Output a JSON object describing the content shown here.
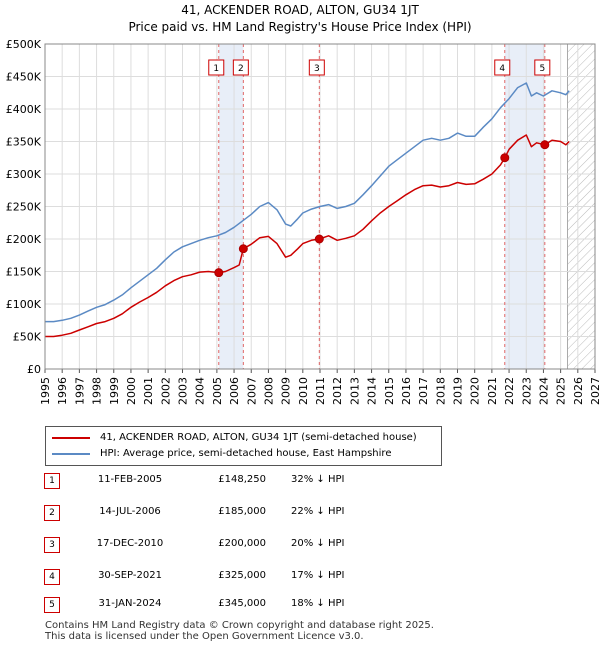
{
  "chart_data": {
    "type": "line",
    "title": "41, ACKENDER ROAD, ALTON, GU34 1JT",
    "subtitle": "Price paid vs. HM Land Registry's House Price Index (HPI)",
    "xlabel": "",
    "ylabel": "",
    "xlim": [
      1995,
      2027
    ],
    "ylim": [
      0,
      500000
    ],
    "x_ticks": [
      1995,
      1996,
      1997,
      1998,
      1999,
      2000,
      2001,
      2002,
      2003,
      2004,
      2005,
      2006,
      2007,
      2008,
      2009,
      2010,
      2011,
      2012,
      2013,
      2014,
      2015,
      2016,
      2017,
      2018,
      2019,
      2020,
      2021,
      2022,
      2023,
      2024,
      2025,
      2026,
      2027
    ],
    "y_ticks": [
      {
        "value": 0,
        "label": "£0"
      },
      {
        "value": 50000,
        "label": "£50K"
      },
      {
        "value": 100000,
        "label": "£100K"
      },
      {
        "value": 150000,
        "label": "£150K"
      },
      {
        "value": 200000,
        "label": "£200K"
      },
      {
        "value": 250000,
        "label": "£250K"
      },
      {
        "value": 300000,
        "label": "£300K"
      },
      {
        "value": 350000,
        "label": "£350K"
      },
      {
        "value": 400000,
        "label": "£400K"
      },
      {
        "value": 450000,
        "label": "£450K"
      },
      {
        "value": 500000,
        "label": "£500K"
      }
    ],
    "grid": true,
    "forecast_from": 2025.4,
    "series": [
      {
        "name": "41, ACKENDER ROAD, ALTON, GU34 1JT (semi-detached house)",
        "color": "#cc0000",
        "x": [
          1995,
          1995.5,
          1996,
          1996.5,
          1997,
          1997.5,
          1998,
          1998.5,
          1999,
          1999.5,
          2000,
          2000.5,
          2001,
          2001.5,
          2002,
          2002.5,
          2003,
          2003.5,
          2004,
          2004.5,
          2005.11,
          2005.5,
          2006,
          2006.3,
          2006.54,
          2007,
          2007.5,
          2008,
          2008.5,
          2009,
          2009.3,
          2009.7,
          2010,
          2010.5,
          2010.96,
          2011.5,
          2012,
          2012.5,
          2013,
          2013.5,
          2014,
          2014.5,
          2015,
          2015.5,
          2016,
          2016.5,
          2017,
          2017.5,
          2018,
          2018.5,
          2019,
          2019.5,
          2020,
          2020.5,
          2021,
          2021.5,
          2021.75,
          2022,
          2022.5,
          2023,
          2023.3,
          2023.6,
          2024.08,
          2024.5,
          2025,
          2025.3,
          2025.5
        ],
        "y": [
          50000,
          50000,
          52000,
          55000,
          60000,
          65000,
          70000,
          73000,
          78000,
          85000,
          95000,
          103000,
          110000,
          118000,
          128000,
          136000,
          142000,
          145000,
          149000,
          150000,
          148250,
          150000,
          156000,
          160000,
          185000,
          192000,
          202000,
          204000,
          193000,
          172000,
          175000,
          185000,
          193000,
          198000,
          200000,
          205000,
          198000,
          201000,
          205000,
          215000,
          228000,
          240000,
          250000,
          259000,
          268000,
          276000,
          282000,
          283000,
          280000,
          282000,
          287000,
          284000,
          285000,
          292000,
          300000,
          314000,
          325000,
          338000,
          352000,
          360000,
          342000,
          348000,
          345000,
          352000,
          350000,
          345000,
          350000
        ]
      },
      {
        "name": "HPI: Average price, semi-detached house, East Hampshire",
        "color": "#5b8ac4",
        "x": [
          1995,
          1995.5,
          1996,
          1996.5,
          1997,
          1997.5,
          1998,
          1998.5,
          1999,
          1999.5,
          2000,
          2000.5,
          2001,
          2001.5,
          2002,
          2002.5,
          2003,
          2003.5,
          2004,
          2004.5,
          2005,
          2005.5,
          2006,
          2006.5,
          2007,
          2007.5,
          2008,
          2008.5,
          2009,
          2009.3,
          2009.7,
          2010,
          2010.5,
          2011,
          2011.5,
          2012,
          2012.5,
          2013,
          2013.5,
          2014,
          2014.5,
          2015,
          2015.5,
          2016,
          2016.5,
          2017,
          2017.5,
          2018,
          2018.5,
          2019,
          2019.5,
          2020,
          2020.5,
          2021,
          2021.5,
          2022,
          2022.5,
          2023,
          2023.3,
          2023.6,
          2024,
          2024.5,
          2025,
          2025.3,
          2025.5
        ],
        "y": [
          73000,
          73000,
          75000,
          78000,
          83000,
          89000,
          95000,
          99000,
          106000,
          114000,
          125000,
          135000,
          145000,
          155000,
          168000,
          180000,
          188000,
          193000,
          198000,
          202000,
          205000,
          210000,
          218000,
          228000,
          238000,
          250000,
          256000,
          245000,
          223000,
          220000,
          231000,
          240000,
          246000,
          250000,
          253000,
          247000,
          250000,
          255000,
          268000,
          282000,
          297000,
          312000,
          322000,
          332000,
          342000,
          352000,
          355000,
          352000,
          355000,
          363000,
          358000,
          358000,
          372000,
          385000,
          402000,
          416000,
          433000,
          440000,
          420000,
          425000,
          420000,
          428000,
          425000,
          422000,
          428000
        ]
      }
    ],
    "sale_markers": [
      {
        "num": "1",
        "x": 2005.11,
        "y": 148250
      },
      {
        "num": "2",
        "x": 2006.54,
        "y": 185000
      },
      {
        "num": "3",
        "x": 2010.96,
        "y": 200000
      },
      {
        "num": "4",
        "x": 2021.75,
        "y": 325000
      },
      {
        "num": "5",
        "x": 2024.08,
        "y": 345000
      }
    ],
    "shaded_periods": [
      {
        "from": 2005.11,
        "to": 2006.54
      },
      {
        "from": 2021.75,
        "to": 2024.08
      }
    ]
  },
  "legend": {
    "property_label": "41, ACKENDER ROAD, ALTON, GU34 1JT (semi-detached house)",
    "hpi_label": "HPI: Average price, semi-detached house, East Hampshire"
  },
  "sales": [
    {
      "num": "1",
      "date": "11-FEB-2005",
      "price": "£148,250",
      "hpi": "32% ↓ HPI"
    },
    {
      "num": "2",
      "date": "14-JUL-2006",
      "price": "£185,000",
      "hpi": "22% ↓ HPI"
    },
    {
      "num": "3",
      "date": "17-DEC-2010",
      "price": "£200,000",
      "hpi": "20% ↓ HPI"
    },
    {
      "num": "4",
      "date": "30-SEP-2021",
      "price": "£325,000",
      "hpi": "17% ↓ HPI"
    },
    {
      "num": "5",
      "date": "31-JAN-2024",
      "price": "£345,000",
      "hpi": "18% ↓ HPI"
    }
  ],
  "footer": {
    "line1": "Contains HM Land Registry data © Crown copyright and database right 2025.",
    "line2": "This data is licensed under the Open Government Licence v3.0."
  },
  "colors": {
    "property": "#cc0000",
    "hpi": "#5b8ac4",
    "shade": "#e8eef8",
    "grid": "#dddddd"
  }
}
